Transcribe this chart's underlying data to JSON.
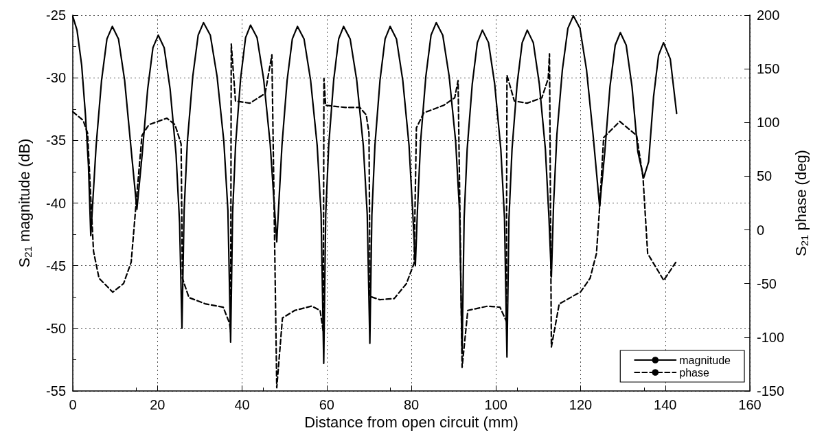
{
  "chart_data": {
    "type": "line",
    "xlabel": "Distance from open circuit (mm)",
    "ylabel": "S$_{21}$ magnitude (dB)",
    "y2label": "S$_{21}$ phase (deg)",
    "xlim": [
      0,
      160
    ],
    "xticks": [
      0,
      20,
      40,
      60,
      80,
      100,
      120,
      140,
      160
    ],
    "ylim": [
      -55,
      -25
    ],
    "yticks": [
      -55,
      -50,
      -45,
      -40,
      -35,
      -30,
      -25
    ],
    "y2lim": [
      -150,
      200
    ],
    "y2ticks": [
      -150,
      -100,
      -50,
      0,
      50,
      100,
      150,
      200
    ],
    "grid": true,
    "legend": "bottom right",
    "marker": "none",
    "series": [
      {
        "name": "magnitude",
        "color": "#000000",
        "line_style": "solid",
        "x": [
          0,
          1.0,
          2.1,
          3.0,
          3.7,
          4.25,
          5.52,
          6.8,
          8.07,
          9.35,
          10.8,
          12.25,
          13.7,
          15.15,
          16.4,
          17.7,
          18.94,
          20.2,
          21.6,
          23.0,
          24.4,
          25.24,
          25.8,
          26.31,
          27.08,
          28.35,
          29.63,
          30.9,
          32.5,
          34.1,
          35.7,
          36.66,
          37.3,
          37.77,
          38.48,
          39.65,
          40.83,
          42.0,
          43.55,
          45.1,
          46.65,
          48.2,
          49.43,
          50.65,
          51.88,
          53.1,
          54.65,
          56.2,
          57.75,
          58.68,
          59.3,
          59.77,
          60.48,
          61.65,
          62.83,
          64.0,
          65.55,
          67.1,
          68.65,
          69.58,
          70.2,
          70.68,
          71.4,
          72.6,
          73.8,
          75.0,
          76.49,
          77.98,
          79.46,
          80.36,
          80.95,
          81.45,
          82.19,
          83.43,
          84.66,
          85.9,
          87.43,
          88.95,
          90.48,
          91.39,
          92.0,
          92.48,
          93.2,
          94.4,
          95.6,
          96.8,
          98.25,
          99.7,
          101.15,
          102.02,
          102.6,
          103.08,
          103.8,
          105.0,
          106.2,
          107.4,
          108.83,
          110.25,
          111.68,
          112.53,
          113.1,
          113.62,
          114.4,
          115.7,
          117.0,
          118.3,
          119.85,
          121.4,
          122.95,
          124.5,
          125.73,
          126.95,
          128.18,
          129.4,
          130.78,
          132.15,
          133.53,
          134.9,
          136.08,
          137.25,
          138.43,
          139.6,
          141.2,
          142.7
        ],
        "values": [
          -25.1,
          -26.2,
          -29,
          -33,
          -37,
          -42.6,
          -35.4,
          -30.2,
          -26.9,
          -25.9,
          -26.9,
          -30.2,
          -35.4,
          -40.5,
          -36.1,
          -30.9,
          -27.6,
          -26.6,
          -27.6,
          -30.9,
          -36.1,
          -41.6,
          -50,
          -40.6,
          -35.1,
          -29.9,
          -26.6,
          -25.6,
          -26.6,
          -29.9,
          -35.1,
          -40.6,
          -51.1,
          -40.8,
          -35.3,
          -30.1,
          -26.8,
          -25.8,
          -26.8,
          -30.1,
          -35.3,
          -43.1,
          -35.4,
          -30.2,
          -26.9,
          -25.9,
          -26.9,
          -30.2,
          -35.4,
          -40.9,
          -52.8,
          -40.9,
          -35.4,
          -30.2,
          -26.9,
          -25.9,
          -26.9,
          -30.2,
          -35.4,
          -40.9,
          -51.2,
          -40.9,
          -35.4,
          -30.2,
          -26.9,
          -25.9,
          -26.9,
          -30.2,
          -35.4,
          -40.9,
          -45,
          -40.6,
          -35.1,
          -29.9,
          -26.6,
          -25.6,
          -26.6,
          -29.9,
          -35.1,
          -40.6,
          -52,
          -41.2,
          -35.7,
          -30.5,
          -27.2,
          -26.2,
          -27.2,
          -30.5,
          -35.7,
          -41.2,
          -52.3,
          -41.2,
          -35.7,
          -30.5,
          -27.2,
          -26.2,
          -27.2,
          -30.5,
          -35.7,
          -41.2,
          -45.9,
          -40.05,
          -34.55,
          -29.35,
          -26.05,
          -25.05,
          -26.05,
          -29.35,
          -34.55,
          -40.3,
          -35.9,
          -30.7,
          -27.4,
          -26.4,
          -27.4,
          -30.7,
          -35.9,
          -38.0,
          -36.7,
          -31.5,
          -28.2,
          -27.2,
          -28.5,
          -32.85
        ]
      },
      {
        "name": "phase",
        "color": "#000000",
        "line_style": "dashed",
        "axis": "y2",
        "x": [
          0,
          2.45,
          3.5,
          4.25,
          4.9,
          6.2,
          9.45,
          12,
          13.8,
          14.95,
          16.35,
          18,
          22.25,
          24.15,
          25.6,
          25.9,
          27.45,
          31.45,
          35.55,
          37.05,
          37.3,
          37.45,
          38.45,
          41.85,
          45.45,
          47.05,
          48.2,
          49.55,
          52.45,
          56.45,
          58.45,
          59.2,
          59.35,
          59.75,
          64.45,
          67.85,
          69.35,
          70.0,
          70.25,
          72.55,
          75.95,
          78.85,
          80.65,
          81.2,
          82.95,
          87.65,
          90.25,
          91.05,
          92.0,
          93.35,
          98.05,
          100.95,
          102.45,
          102.6,
          104.35,
          107.35,
          110.85,
          112.35,
          112.65,
          113.1,
          114.95,
          118.95,
          119.95,
          122.25,
          123.75,
          124.55,
          125.45,
          129.25,
          133.25,
          134.75,
          135.85,
          139.65,
          142.7
        ],
        "values": [
          110,
          102,
          90,
          30,
          -20,
          -45,
          -58,
          -50,
          -30,
          24,
          88,
          98,
          104,
          98,
          80,
          -45,
          -63,
          -69,
          -72,
          -87,
          -95,
          173,
          120,
          118,
          127,
          163,
          -147,
          -82,
          -75,
          -71,
          -75,
          -95,
          141,
          116,
          114,
          114,
          107,
          90,
          -62,
          -65,
          -64,
          -50,
          -31,
          95,
          109,
          116,
          123,
          139,
          -128,
          -75,
          -71,
          -72,
          -85,
          144,
          120,
          118,
          123,
          141,
          164,
          -109,
          -69,
          -60,
          -58,
          -45,
          -22,
          24,
          86,
          101,
          88,
          49,
          -22,
          -47,
          -29
        ]
      }
    ]
  }
}
